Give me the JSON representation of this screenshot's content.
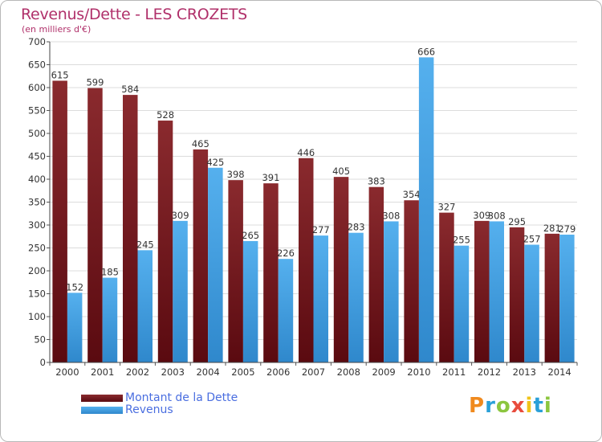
{
  "chart_data": {
    "type": "bar",
    "title": "Revenus/Dette - LES CROZETS",
    "subtitle": "(en milliers d'€)",
    "categories": [
      "2000",
      "2001",
      "2002",
      "2003",
      "2004",
      "2005",
      "2006",
      "2007",
      "2008",
      "2009",
      "2010",
      "2011",
      "2012",
      "2013",
      "2014"
    ],
    "series": [
      {
        "name": "Montant de la Dette",
        "color": "#7a1c22",
        "values": [
          615,
          599,
          584,
          528,
          465,
          398,
          391,
          446,
          405,
          383,
          354,
          327,
          309,
          295,
          281
        ]
      },
      {
        "name": "Revenus",
        "color": "#4ca6e8",
        "values": [
          152,
          185,
          245,
          309,
          425,
          265,
          226,
          277,
          283,
          308,
          666,
          255,
          308,
          257,
          279
        ]
      }
    ],
    "ylim": [
      0,
      700
    ],
    "yticks": [
      0,
      50,
      100,
      150,
      200,
      250,
      300,
      350,
      400,
      450,
      500,
      550,
      600,
      650,
      700
    ],
    "grid": true,
    "legend_position": "bottom-left"
  },
  "logo": {
    "letters": [
      "P",
      "r",
      "o",
      "x",
      "i",
      "t",
      "i"
    ],
    "colors": [
      "#f08a1e",
      "#2aa0d8",
      "#8cc63f",
      "#e84c3d",
      "#f0c419",
      "#2aa0d8",
      "#8cc63f"
    ]
  }
}
